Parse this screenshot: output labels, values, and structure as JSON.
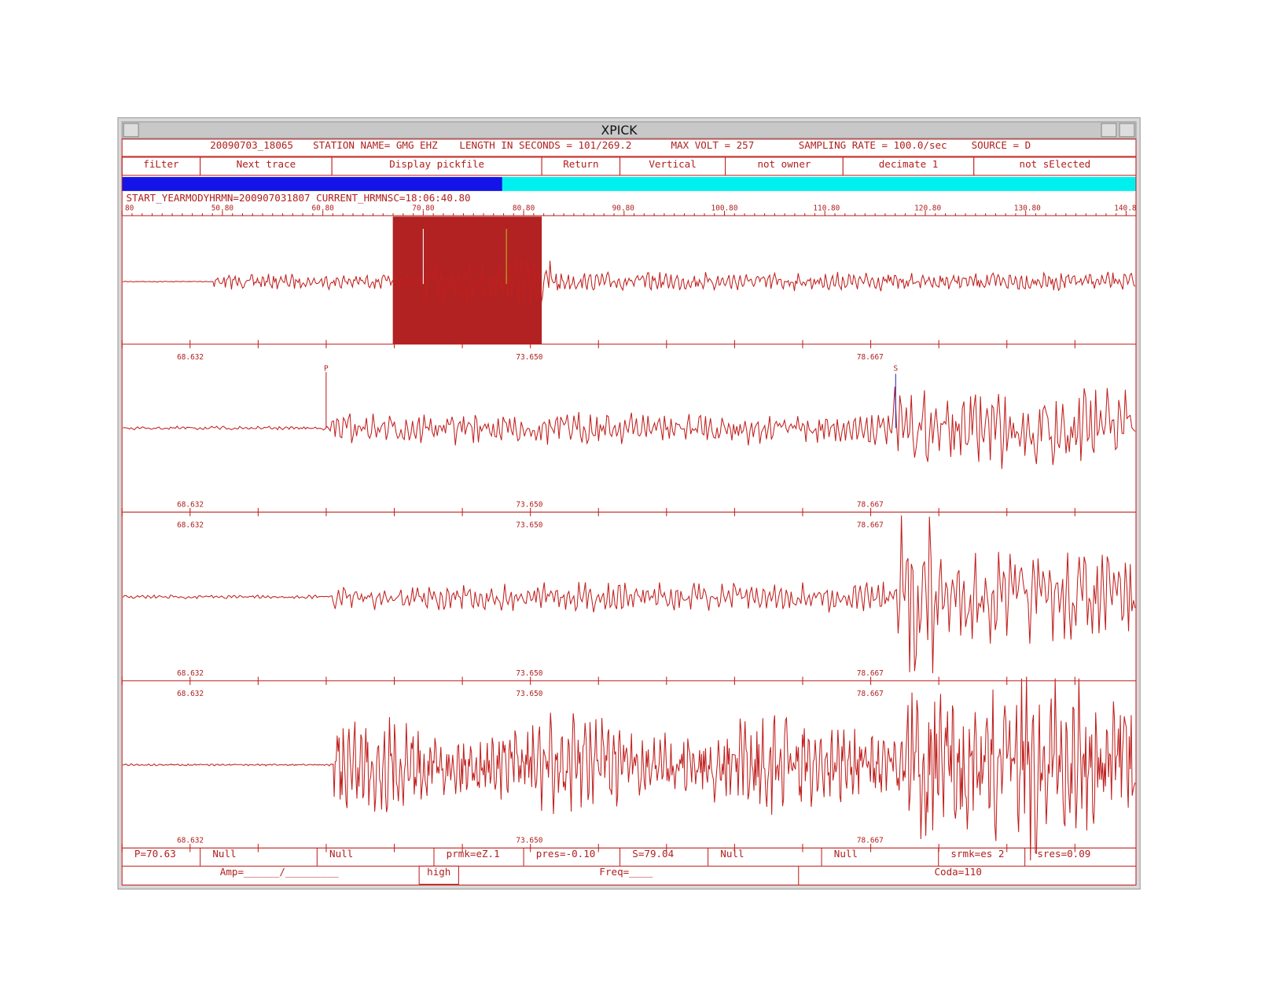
{
  "window": {
    "title": "XPICK"
  },
  "header": {
    "info": [
      "20090703_18065",
      "STATION NAME= GMG EHZ",
      "LENGTH IN SECONDS =  101/269.2",
      "MAX VOLT = 257",
      "SAMPLING RATE = 100.0/sec",
      "SOURCE = D"
    ]
  },
  "buttons": [
    "fiLter",
    "Next trace",
    "Display pickfile",
    "Return",
    "Vertical",
    "not owner",
    "decimate 1",
    "not sElected"
  ],
  "status": "START_YEARMODYHRMN=200907031807 CURRENT_HRMNSC=18:06:40.80",
  "ruler": [
    "80",
    "50.80",
    "60.80",
    "70.80",
    "80.80",
    "90.80",
    "100.80",
    "110.80",
    "120.80",
    "130.80",
    "140.8"
  ],
  "picks": {
    "p": "P",
    "s": "S"
  },
  "time_labels": [
    "68.632",
    "73.650",
    "78.667"
  ],
  "fields": [
    "P=70.63",
    "Null",
    "Null",
    "prmk=eZ.1",
    "pres=-0.10",
    "S=79.04",
    "Null",
    "Null",
    "srmk=es 2",
    "sres=0.09"
  ],
  "bottom": [
    "Amp=______/_________",
    "high",
    "Freq=____",
    "Coda=110"
  ]
}
